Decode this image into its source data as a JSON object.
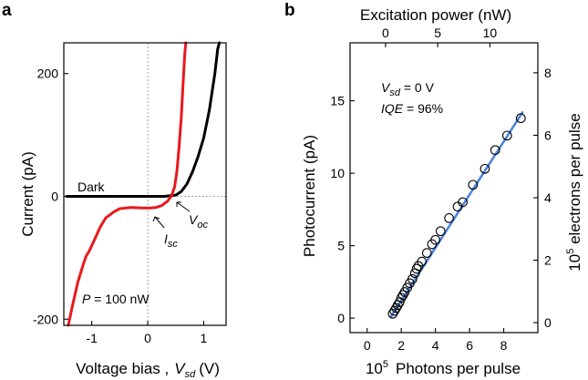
{
  "panels": {
    "a": {
      "letter": "a"
    },
    "b": {
      "letter": "b"
    }
  },
  "chart_data": [
    {
      "id": "a",
      "type": "line",
      "xlabel": "Voltage bias ,",
      "xlabel_var": {
        "base": "V",
        "sub": "sd"
      },
      "xlabel_unit": "(V)",
      "ylabel": "Current  (pA)",
      "xlim": [
        -1.5,
        1.4
      ],
      "ylim": [
        -210,
        250
      ],
      "xticks": [
        -1,
        0,
        1
      ],
      "yticks": [
        -200,
        0,
        200
      ],
      "xtick_labels": [
        "-1",
        "0",
        "1"
      ],
      "ytick_labels": [
        "-200",
        "0",
        "200"
      ],
      "guides": {
        "x": 0,
        "y": 0
      },
      "series": [
        {
          "name": "Dark",
          "color": "#000000",
          "points": [
            [
              -1.45,
              0
            ],
            [
              -1.0,
              0
            ],
            [
              -0.5,
              0
            ],
            [
              0.0,
              0
            ],
            [
              0.3,
              0
            ],
            [
              0.5,
              2
            ],
            [
              0.6,
              8
            ],
            [
              0.7,
              20
            ],
            [
              0.8,
              40
            ],
            [
              0.9,
              65
            ],
            [
              1.0,
              95
            ],
            [
              1.1,
              140
            ],
            [
              1.2,
              200
            ],
            [
              1.25,
              240
            ],
            [
              1.28,
              250
            ]
          ]
        },
        {
          "name": "P = 100 nW",
          "color": "#e8191c",
          "points": [
            [
              -1.42,
              -210
            ],
            [
              -1.35,
              -180
            ],
            [
              -1.25,
              -140
            ],
            [
              -1.15,
              -110
            ],
            [
              -1.1,
              -97
            ],
            [
              -1.05,
              -90
            ],
            [
              -0.95,
              -70
            ],
            [
              -0.85,
              -50
            ],
            [
              -0.75,
              -35
            ],
            [
              -0.6,
              -25
            ],
            [
              -0.5,
              -20
            ],
            [
              -0.3,
              -18
            ],
            [
              -0.1,
              -19
            ],
            [
              0.05,
              -19
            ],
            [
              0.15,
              -18
            ],
            [
              0.25,
              -15
            ],
            [
              0.35,
              -8
            ],
            [
              0.42,
              0
            ],
            [
              0.48,
              15
            ],
            [
              0.52,
              40
            ],
            [
              0.56,
              80
            ],
            [
              0.6,
              130
            ],
            [
              0.63,
              180
            ],
            [
              0.66,
              230
            ],
            [
              0.68,
              250
            ]
          ]
        }
      ],
      "annotations": {
        "dark": "Dark",
        "power": {
          "var": "P",
          "text": " = 100 nW"
        },
        "isc": {
          "base": "I",
          "sub": "sc"
        },
        "voc": {
          "base": "V",
          "sub": "oc"
        }
      }
    },
    {
      "id": "b",
      "type": "scatter",
      "xlabel_prefix": "10",
      "xlabel_exp": "5",
      "xlabel": "Photons per pulse",
      "ylabel": "Photocurrent  (pA)",
      "top_xlabel": "Excitation power (nW)",
      "right_ylabel_prefix": "10",
      "right_ylabel_exp": "5",
      "right_ylabel": " electrons per pulse",
      "xlim": [
        -1,
        10
      ],
      "ylim": [
        -1,
        19
      ],
      "xticks": [
        0,
        2,
        4,
        6,
        8
      ],
      "yticks": [
        0,
        5,
        10,
        15
      ],
      "top_xlim": [
        -3.4,
        14.6
      ],
      "top_xticks": [
        0,
        5,
        10
      ],
      "right_ylim": [
        -0.32,
        8.96
      ],
      "right_yticks": [
        0,
        2,
        4,
        6,
        8
      ],
      "xtick_labels": [
        "0",
        "2",
        "4",
        "6",
        "8"
      ],
      "ytick_labels": [
        "0",
        "5",
        "10",
        "15"
      ],
      "top_xtick_labels": [
        "0",
        "5",
        "10"
      ],
      "right_ytick_labels": [
        "0",
        "2",
        "4",
        "6",
        "8"
      ],
      "points": {
        "x": [
          1.5,
          1.6,
          1.7,
          1.8,
          1.9,
          2.0,
          2.1,
          2.2,
          2.35,
          2.5,
          2.65,
          2.8,
          2.9,
          3.0,
          3.2,
          3.5,
          3.8,
          4.0,
          4.3,
          4.8,
          5.3,
          5.6,
          6.2,
          6.9,
          7.5,
          8.2,
          9.0
        ],
        "y": [
          0.3,
          0.5,
          0.7,
          0.9,
          1.1,
          1.4,
          1.6,
          1.8,
          2.1,
          2.4,
          2.7,
          3.1,
          3.4,
          3.6,
          3.9,
          4.5,
          5.1,
          5.4,
          6.0,
          6.9,
          7.7,
          8.0,
          9.2,
          10.3,
          11.6,
          12.6,
          13.8
        ]
      },
      "fit": {
        "x": [
          1.4,
          9.1
        ],
        "y": [
          0.1,
          14.2
        ],
        "color": "#4a86e0"
      },
      "annotations": {
        "vsd": {
          "base": "V",
          "sub": "sd",
          "text": " = 0 V"
        },
        "iqe": {
          "var": "IQE",
          "text": " = 96%"
        }
      }
    }
  ]
}
